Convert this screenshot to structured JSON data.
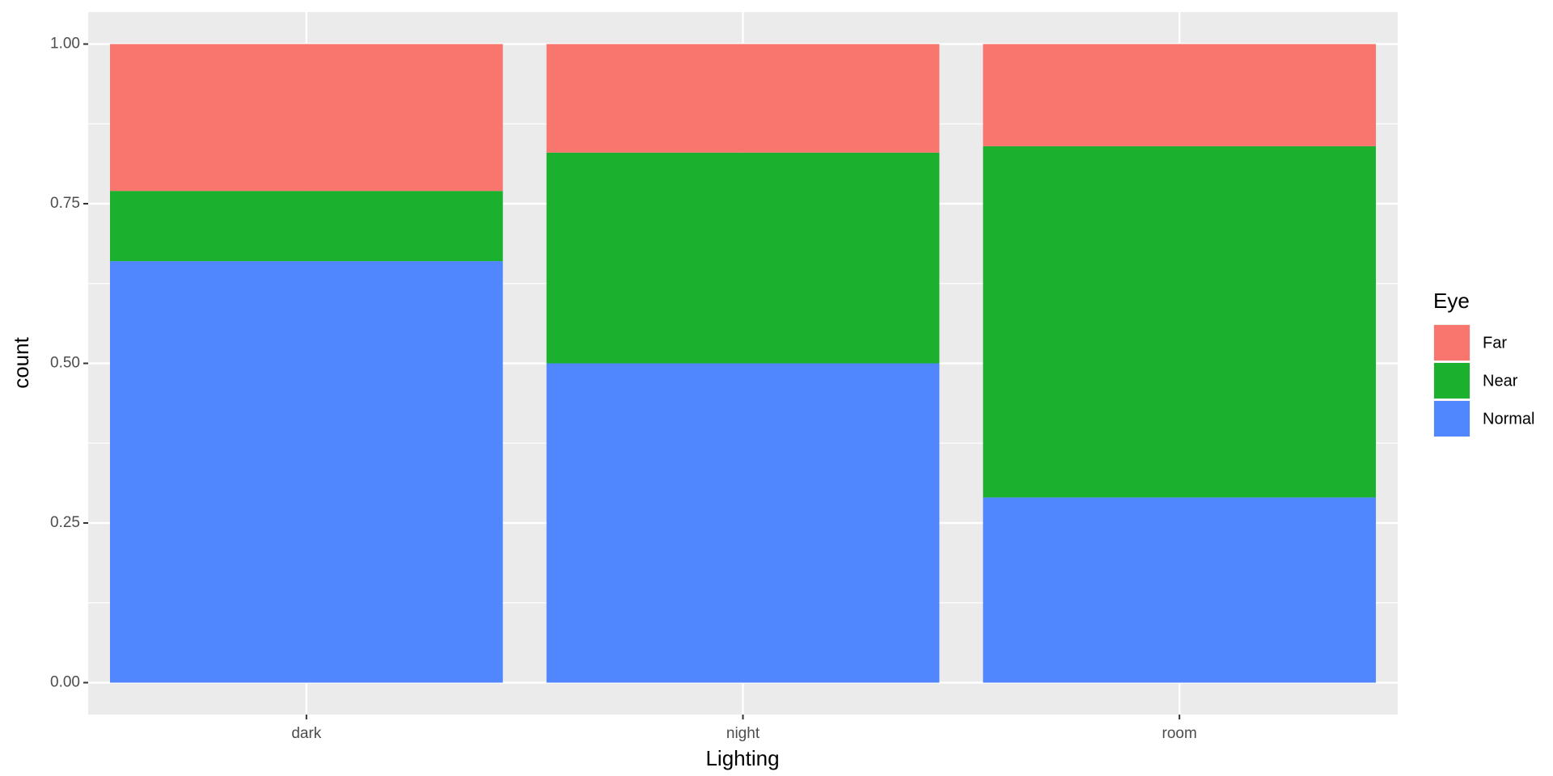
{
  "chart_data": {
    "type": "stacked_bar",
    "x_label": "Lighting",
    "y_label": "count",
    "legend_title": "Eye",
    "legend_position": "right",
    "categories": [
      "dark",
      "night",
      "room"
    ],
    "series": [
      {
        "name": "Far",
        "color": "#f8766d",
        "values": [
          0.23,
          0.17,
          0.16
        ]
      },
      {
        "name": "Near",
        "color": "#1bb12f",
        "values": [
          0.11,
          0.33,
          0.55
        ]
      },
      {
        "name": "Normal",
        "color": "#5087ff",
        "values": [
          0.66,
          0.5,
          0.29
        ]
      }
    ],
    "stack_order": "last-series-at-bottom",
    "ylim": [
      -0.05,
      1.05
    ],
    "yticks": [
      {
        "value": 0,
        "label": "0.00"
      },
      0.25,
      {
        "value": 0.5,
        "label": "0.50"
      },
      0.75,
      {
        "value": 1,
        "label": "1.00"
      }
    ],
    "grid": true
  }
}
